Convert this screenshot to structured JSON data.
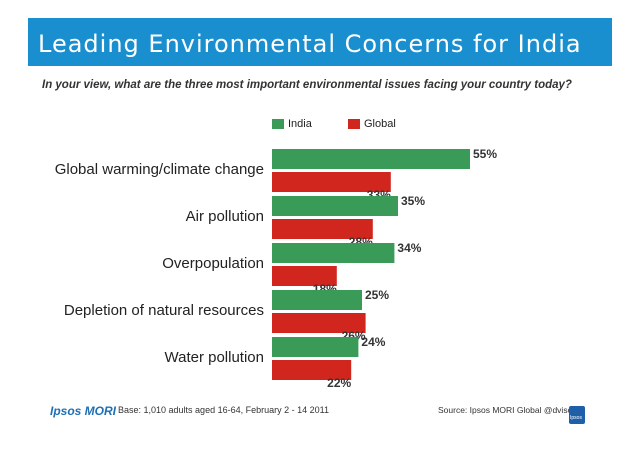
{
  "header": {
    "title": "Leading Environmental Concerns for India",
    "question": "In your view, what are the three most important environmental issues facing your country today?"
  },
  "colors": {
    "title_bar": "#1a8fd0",
    "india": "#3a9a57",
    "global": "#d0261e"
  },
  "chart_data": {
    "type": "bar",
    "orientation": "horizontal",
    "title": "Leading Environmental Concerns for India",
    "categories": [
      "Global warming/climate change",
      "Air pollution",
      "Overpopulation",
      "Depletion of natural resources",
      "Water pollution"
    ],
    "series": [
      {
        "name": "India",
        "values": [
          55,
          35,
          34,
          25,
          24
        ],
        "labels": [
          "55%",
          "35%",
          "34%",
          "25%",
          "24%"
        ]
      },
      {
        "name": "Global",
        "values": [
          33,
          28,
          18,
          26,
          22
        ],
        "labels": [
          "33%",
          "28%",
          "18%",
          "26%",
          "22%"
        ]
      }
    ],
    "xlim": [
      0,
      60
    ],
    "legend_position": "top-center",
    "unit": "%"
  },
  "footer": {
    "logo": "Ipsos MORI",
    "base": "Base: 1,010 adults aged 16-64, February 2 - 14 2011",
    "source": "Source: Ipsos MORI Global @dvisor",
    "badge": "Ipsos"
  }
}
